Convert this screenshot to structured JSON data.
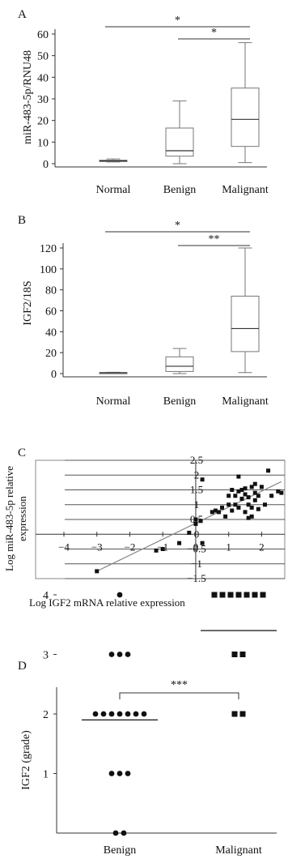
{
  "chart_data": [
    {
      "panel": "A",
      "type": "box",
      "ylabel": "miR-483-5p/RNU48",
      "ylim": [
        0,
        60
      ],
      "yticks": [
        0,
        10,
        20,
        30,
        40,
        50,
        60
      ],
      "categories": [
        "Normal",
        "Benign",
        "Malignant"
      ],
      "boxes": [
        {
          "min": 0.8,
          "q1": 1.0,
          "median": 1.3,
          "q3": 1.6,
          "max": 2.2
        },
        {
          "min": 0,
          "q1": 3.5,
          "median": 6,
          "q3": 16.5,
          "max": 29
        },
        {
          "min": 0.5,
          "q1": 8,
          "median": 20.5,
          "q3": 35,
          "max": 56
        }
      ],
      "significance": [
        {
          "from": 0,
          "to": 2,
          "label": "*"
        },
        {
          "from": 1,
          "to": 2,
          "label": "*"
        }
      ]
    },
    {
      "panel": "B",
      "type": "box",
      "ylabel": "IGF2/18S",
      "ylim": [
        0,
        120
      ],
      "yticks": [
        0,
        20,
        40,
        60,
        80,
        100,
        120
      ],
      "categories": [
        "Normal",
        "Benign",
        "Malignant"
      ],
      "boxes": [
        {
          "min": 0.3,
          "q1": 0.6,
          "median": 0.8,
          "q3": 1.0,
          "max": 1.3
        },
        {
          "min": 0,
          "q1": 2,
          "median": 7,
          "q3": 16,
          "max": 24
        },
        {
          "min": 1,
          "q1": 21,
          "median": 43,
          "q3": 74,
          "max": 120
        }
      ],
      "significance": [
        {
          "from": 0,
          "to": 2,
          "label": "*"
        },
        {
          "from": 1,
          "to": 2,
          "label": "**"
        }
      ]
    },
    {
      "panel": "C",
      "type": "scatter",
      "xlabel": "Log IGF2 mRNA relative expression",
      "ylabel_line1": "Log miR-483-5p relative",
      "ylabel_line2": "expression",
      "xlim": [
        -4,
        2.8
      ],
      "ylim": [
        -1.5,
        2.5
      ],
      "xticks": [
        -4,
        -3,
        -2,
        -1,
        0,
        1,
        2
      ],
      "xtick_labels": [
        "−4",
        "−3",
        "−2",
        "−1",
        "0",
        "1",
        "2"
      ],
      "yticks": [
        -1.5,
        -1,
        -0.5,
        0,
        0.5,
        1,
        1.5,
        2,
        2.5
      ],
      "ytick_labels": [
        "−1.5",
        "−1",
        "−0.5",
        "0",
        "0.5",
        "1",
        "1.5",
        "2",
        "2.5"
      ],
      "fit_line": {
        "x": [
          -3.0,
          2.6
        ],
        "y": [
          -1.25,
          1.78
        ]
      },
      "points": [
        [
          -3.0,
          -1.25
        ],
        [
          -1.2,
          -0.55
        ],
        [
          -1.0,
          -0.5
        ],
        [
          -0.5,
          -0.3
        ],
        [
          -0.2,
          0.05
        ],
        [
          0.0,
          0.35
        ],
        [
          0.0,
          0.5
        ],
        [
          0.15,
          0.45
        ],
        [
          0.2,
          -0.3
        ],
        [
          0.2,
          1.85
        ],
        [
          0.5,
          0.75
        ],
        [
          0.6,
          0.8
        ],
        [
          0.7,
          0.75
        ],
        [
          0.8,
          0.9
        ],
        [
          0.9,
          0.6
        ],
        [
          1.0,
          1.0
        ],
        [
          1.0,
          1.3
        ],
        [
          1.1,
          0.8
        ],
        [
          1.1,
          1.5
        ],
        [
          1.2,
          1.0
        ],
        [
          1.2,
          1.3
        ],
        [
          1.3,
          0.9
        ],
        [
          1.3,
          1.45
        ],
        [
          1.3,
          1.95
        ],
        [
          1.4,
          1.2
        ],
        [
          1.4,
          1.5
        ],
        [
          1.5,
          0.75
        ],
        [
          1.5,
          1.35
        ],
        [
          1.5,
          1.55
        ],
        [
          1.6,
          1.0
        ],
        [
          1.6,
          1.25
        ],
        [
          1.6,
          0.55
        ],
        [
          1.7,
          1.6
        ],
        [
          1.7,
          0.9
        ],
        [
          1.7,
          0.6
        ],
        [
          1.8,
          1.15
        ],
        [
          1.8,
          1.4
        ],
        [
          1.8,
          1.7
        ],
        [
          1.9,
          0.85
        ],
        [
          1.9,
          1.3
        ],
        [
          2.0,
          1.6
        ],
        [
          2.1,
          1.0
        ],
        [
          2.2,
          2.15
        ],
        [
          2.3,
          1.3
        ],
        [
          2.5,
          1.45
        ],
        [
          2.6,
          1.4
        ]
      ]
    },
    {
      "panel": "D",
      "type": "dot",
      "ylabel": "IGF2 (grade)",
      "ylim": [
        0,
        4.6
      ],
      "yticks": [
        1,
        2,
        3,
        4
      ],
      "categories": [
        "Benign",
        "Malignant"
      ],
      "groups": [
        {
          "values": [
            4,
            3,
            3,
            3,
            2,
            2,
            2,
            2,
            2,
            2,
            2,
            1,
            1,
            1,
            0,
            0
          ],
          "mean": 1.9,
          "marker": "circle"
        },
        {
          "values": [
            4,
            4,
            4,
            4,
            4,
            4,
            4,
            3,
            3,
            2,
            2
          ],
          "mean": 3.4,
          "marker": "square"
        }
      ],
      "significance": [
        {
          "from": 0,
          "to": 1,
          "label": "***"
        }
      ]
    }
  ],
  "panel_labels": [
    "A",
    "B",
    "C",
    "D"
  ]
}
